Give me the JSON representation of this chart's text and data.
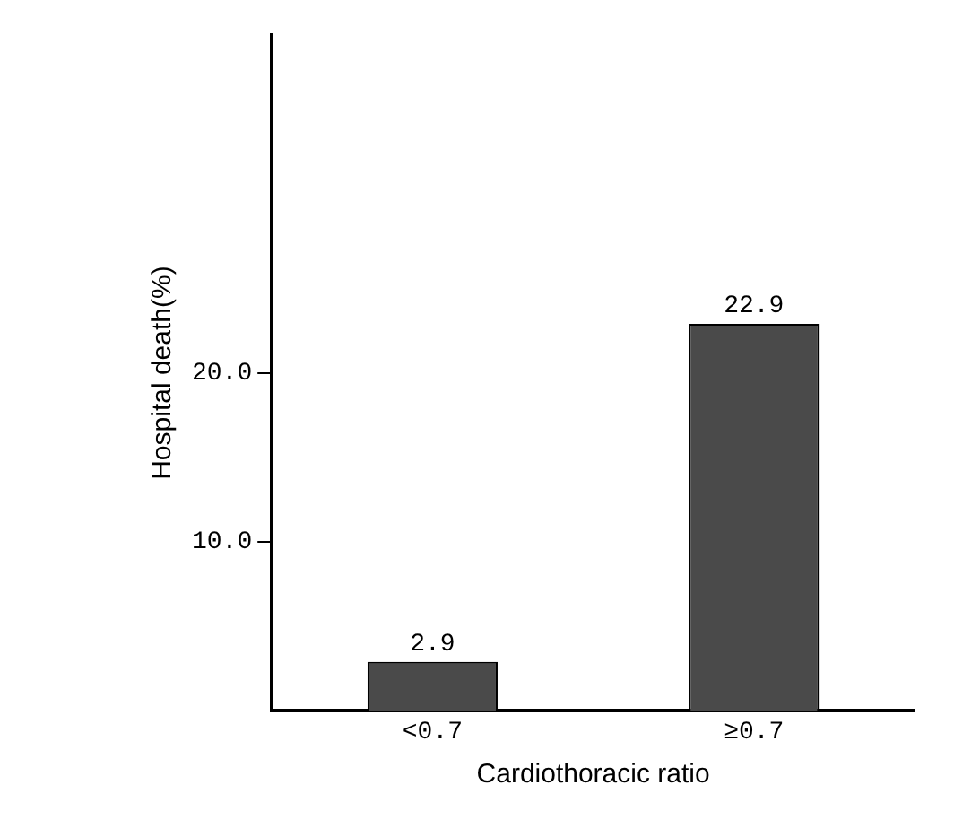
{
  "chart_data": {
    "type": "bar",
    "xlabel": "Cardiothoracic ratio",
    "ylabel": "Hospital death(%)",
    "categories": [
      "<0.7",
      "≥0.7"
    ],
    "values": [
      2.9,
      22.9
    ],
    "color": "#4a4a4a",
    "ylim": [
      0,
      40
    ],
    "yticks": [
      {
        "value": 10,
        "label": "10.0"
      },
      {
        "value": 20,
        "label": "20.0"
      }
    ],
    "data_labels": true,
    "grid": false,
    "legend": false
  }
}
